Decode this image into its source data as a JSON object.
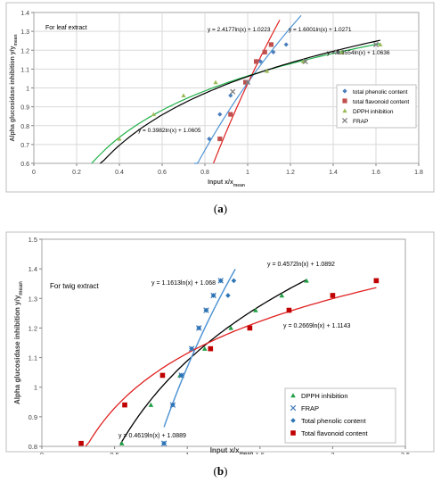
{
  "chart_data": [
    {
      "type": "scatter",
      "panel_label": "(a)",
      "title": "For leaf extract",
      "xlabel": "Input x/x",
      "xlabel_sub": "mean",
      "ylabel": "Alpha glucosidase inhibition y/y",
      "ylabel_sub": "mean",
      "xlim": [
        0,
        1.8
      ],
      "ylim": [
        0.6,
        1.4
      ],
      "x_ticks": [
        "0",
        "0.2",
        "0.4",
        "0.6",
        "0.8",
        "1",
        "1.2",
        "1.4",
        "1.6",
        "1.8"
      ],
      "y_ticks": [
        "0.6",
        "0.7",
        "0.8",
        "0.9",
        "1",
        "1.1",
        "1.2",
        "1.3",
        "1.4"
      ],
      "grid": true,
      "legend_position": "right",
      "legend": [
        {
          "name": "total phenolic content",
          "marker": "diamond",
          "color": "#4a7ebb"
        },
        {
          "name": "total flavonoid content",
          "marker": "square",
          "color": "#c0504d"
        },
        {
          "name": "DPPH inhibition",
          "marker": "triangle",
          "color": "#9bbb59"
        },
        {
          "name": "FRAP",
          "marker": "x",
          "color": "#7f7f7f"
        }
      ],
      "series": [
        {
          "name": "total phenolic content",
          "marker": "diamond",
          "color": "#4a7ebb",
          "line_color": "#4f94d4",
          "fit": {
            "a": 1.6001,
            "b": 1.0271,
            "xmin": 0.75,
            "xmax": 1.25
          },
          "equation": "y = 1.6001ln(x) + 1.0271",
          "x": [
            0.82,
            0.87,
            0.92,
            1.0,
            1.06,
            1.12,
            1.18
          ],
          "y": [
            0.73,
            0.86,
            0.96,
            1.03,
            1.14,
            1.19,
            1.23
          ]
        },
        {
          "name": "total flavonoid content",
          "marker": "square",
          "color": "#c0504d",
          "line_color": "#e02020",
          "fit": {
            "a": 2.4177,
            "b": 1.0223,
            "xmin": 0.84,
            "xmax": 1.15
          },
          "equation": "y = 2.4177ln(x) + 1.0223",
          "x": [
            0.87,
            0.92,
            0.99,
            1.04,
            1.08,
            1.11
          ],
          "y": [
            0.73,
            0.86,
            1.03,
            1.14,
            1.19,
            1.23
          ]
        },
        {
          "name": "DPPH inhibition",
          "marker": "triangle",
          "color": "#9bbb59",
          "line_color": "#22b04a",
          "fit": {
            "a": 0.3554,
            "b": 1.0636,
            "xmin": 0.27,
            "xmax": 1.62
          },
          "equation": "y = 0.3554ln(x) + 1.0636",
          "x": [
            0.4,
            0.56,
            0.7,
            0.85,
            1.09,
            1.26,
            1.44,
            1.62
          ],
          "y": [
            0.73,
            0.86,
            0.96,
            1.03,
            1.09,
            1.14,
            1.19,
            1.23
          ]
        },
        {
          "name": "FRAP",
          "marker": "x",
          "color": "#7f7f7f",
          "line_color": "#000000",
          "fit": {
            "a": 0.3982,
            "b": 1.0605,
            "xmin": 0.31,
            "xmax": 1.62
          },
          "equation": "y = 0.3982ln(x) + 1.0605",
          "x": [
            0.93,
            1.0,
            1.27,
            1.42,
            1.6
          ],
          "y": [
            0.98,
            1.03,
            1.14,
            1.19,
            1.23
          ]
        }
      ]
    },
    {
      "type": "scatter",
      "panel_label": "(b)",
      "title": "For twig extract",
      "xlabel": "Input x/x",
      "xlabel_sub": "mean",
      "ylabel": "Alpha glucosidase inhibition y/y",
      "ylabel_sub": "mean",
      "xlim": [
        0,
        2.5
      ],
      "ylim": [
        0.8,
        1.5
      ],
      "x_ticks": [
        "0",
        "0.5",
        "1",
        "1.5",
        "2",
        "2.5"
      ],
      "y_ticks": [
        "0.8",
        "0.9",
        "1",
        "1.1",
        "1.2",
        "1.3",
        "1.4",
        "1.5"
      ],
      "grid": false,
      "legend_position": "bottom-right",
      "legend": [
        {
          "name": "DPPH inhibition",
          "marker": "triangle",
          "color": "#22a046"
        },
        {
          "name": "FRAP",
          "marker": "x",
          "color": "#4a7ebb"
        },
        {
          "name": "Total phenolic content",
          "marker": "diamond",
          "color": "#2e75b6"
        },
        {
          "name": "Total flavonoid content",
          "marker": "square",
          "color": "#c00000"
        }
      ],
      "series": [
        {
          "name": "DPPH inhibition",
          "marker": "triangle",
          "color": "#22a046",
          "line_color": "#000000",
          "fit": {
            "a": 0.4572,
            "b": 1.0892,
            "xmin": 0.54,
            "xmax": 1.82
          },
          "equation": "y = 0.4572ln(x) + 1.0892",
          "x": [
            0.55,
            0.75,
            0.95,
            1.12,
            1.3,
            1.47,
            1.65,
            1.82
          ],
          "y": [
            0.81,
            0.94,
            1.04,
            1.13,
            1.2,
            1.26,
            1.31,
            1.36
          ]
        },
        {
          "name": "FRAP",
          "marker": "x",
          "color": "#4a7ebb",
          "line_color": "#4f94d4",
          "fit": {
            "a": 1.1613,
            "b": 1.068,
            "xmin": 0.84,
            "xmax": 1.33
          },
          "equation": "y = 1.1613ln(x) + 1.068",
          "x": [
            0.84,
            0.9,
            0.96,
            1.03,
            1.08,
            1.13,
            1.18,
            1.23
          ],
          "y": [
            0.81,
            0.94,
            1.04,
            1.13,
            1.2,
            1.26,
            1.31,
            1.36
          ]
        },
        {
          "name": "Total phenolic content",
          "marker": "diamond",
          "color": "#2e75b6",
          "line_color": "#4f94d4",
          "fit": {
            "a": 1.1613,
            "b": 1.068,
            "xmin": 0.84,
            "xmax": 1.33
          },
          "x": [
            0.84,
            0.9,
            0.96,
            1.03,
            1.08,
            1.13,
            1.18,
            1.23,
            1.28,
            1.32
          ],
          "y": [
            0.81,
            0.94,
            1.04,
            1.13,
            1.2,
            1.26,
            1.31,
            1.36,
            1.31,
            1.36
          ]
        },
        {
          "name": "Total flavonoid content",
          "marker": "square",
          "color": "#c00000",
          "line_color": "#e02020",
          "fit": {
            "a": 0.2669,
            "b": 1.1143,
            "xmin": 0.3,
            "xmax": 2.3
          },
          "equation": "y = 0.2669ln(x) + 1.1143",
          "x": [
            0.27,
            0.57,
            0.83,
            1.16,
            1.43,
            1.7,
            2.0,
            2.3
          ],
          "y": [
            0.81,
            0.94,
            1.04,
            1.13,
            1.2,
            1.26,
            1.31,
            1.36
          ]
        }
      ],
      "extra_equation": "y = 0.4619ln(x) + 1.0889"
    }
  ],
  "captions": {
    "a_open": "(",
    "a_letter": "a",
    "a_close": ")",
    "b_open": "(",
    "b_letter": "b",
    "b_close": ")"
  }
}
